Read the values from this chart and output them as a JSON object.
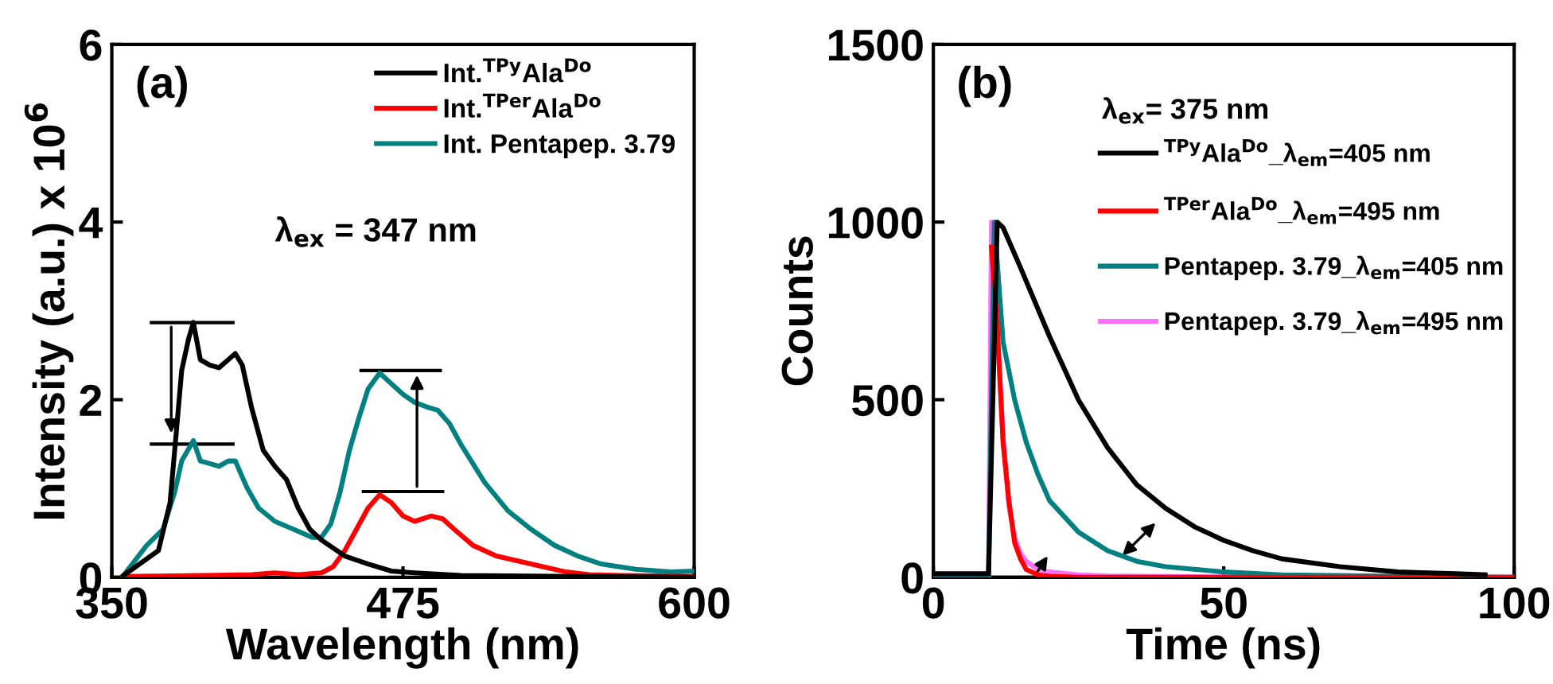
{
  "chart_data": [
    {
      "type": "line",
      "xlabel": "Wavelength (nm)",
      "ylabel": "Intensity (a.u.) x 10$^{6}$",
      "xlim": [
        350,
        600
      ],
      "xticks": [
        350,
        475,
        600
      ],
      "ylim": [
        0,
        6
      ],
      "yticks": [
        0,
        2,
        4,
        6
      ],
      "grid": false,
      "legend": "top right",
      "annotations": [
        "(a)",
        "λ$_{ex}$ = 347 nm"
      ],
      "series": [
        {
          "name": "Int.$^{TPy}$Ala$^{Do}$",
          "color": "#000000",
          "x": [
            355,
            370,
            375,
            378,
            380,
            383,
            385,
            388,
            392,
            396,
            400,
            403,
            406,
            410,
            415,
            420,
            425,
            430,
            435,
            440,
            450,
            460,
            470,
            480,
            500,
            550,
            600
          ],
          "values": [
            0.02,
            0.3,
            0.84,
            1.73,
            2.33,
            2.69,
            2.87,
            2.45,
            2.39,
            2.36,
            2.45,
            2.52,
            2.39,
            1.91,
            1.43,
            1.25,
            1.1,
            0.78,
            0.54,
            0.42,
            0.24,
            0.15,
            0.07,
            0.05,
            0.02,
            0.01,
            0
          ]
        },
        {
          "name": "Int.$^{TPer}$Ala$^{Do}$",
          "color": "#ff0000",
          "x": [
            355,
            390,
            410,
            420,
            430,
            440,
            445,
            450,
            455,
            460,
            465,
            470,
            475,
            480,
            487,
            492,
            497,
            505,
            515,
            525,
            535,
            545,
            555,
            570,
            600
          ],
          "values": [
            0.01,
            0.02,
            0.03,
            0.05,
            0.03,
            0.05,
            0.12,
            0.3,
            0.54,
            0.78,
            0.93,
            0.84,
            0.69,
            0.63,
            0.69,
            0.66,
            0.54,
            0.36,
            0.24,
            0.18,
            0.12,
            0.06,
            0.03,
            0.02,
            0.01
          ]
        },
        {
          "name": "Int. Pentapep. 3.79",
          "color": "#008080",
          "x": [
            355,
            365,
            372,
            377,
            380,
            385,
            388,
            392,
            396,
            400,
            403,
            408,
            413,
            420,
            428,
            436,
            440,
            444,
            448,
            452,
            456,
            460,
            465,
            470,
            475,
            480,
            485,
            490,
            495,
            500,
            510,
            520,
            530,
            540,
            550,
            560,
            575,
            590,
            600
          ],
          "values": [
            0.02,
            0.36,
            0.54,
            0.96,
            1.31,
            1.54,
            1.31,
            1.28,
            1.25,
            1.31,
            1.31,
            1.01,
            0.78,
            0.63,
            0.54,
            0.45,
            0.45,
            0.6,
            0.96,
            1.43,
            1.79,
            2.12,
            2.3,
            2.18,
            2.06,
            1.97,
            1.92,
            1.88,
            1.73,
            1.49,
            1.07,
            0.75,
            0.54,
            0.36,
            0.24,
            0.15,
            0.09,
            0.06,
            0.07
          ]
        }
      ]
    },
    {
      "type": "line",
      "xlabel": "Time (ns)",
      "ylabel": "Counts",
      "xlim": [
        0,
        100
      ],
      "xticks": [
        0,
        50,
        100
      ],
      "ylim": [
        0,
        1500
      ],
      "yticks": [
        0,
        500,
        1000,
        1500
      ],
      "grid": false,
      "legend": "top right",
      "annotations": [
        "(b)",
        "λ$_{ex}$= 375 nm"
      ],
      "series": [
        {
          "name": "$^{TPy}$Ala$^{Do}$_λ$_{em}$=405 nm",
          "color": "#000000",
          "x": [
            0,
            9.5,
            11,
            12,
            15,
            20,
            25,
            30,
            35,
            40,
            45,
            50,
            55,
            60,
            70,
            80,
            90,
            95
          ],
          "values": [
            10,
            10,
            1000,
            985,
            872,
            678,
            499,
            365,
            261,
            194,
            142,
            104,
            75,
            52,
            30,
            15,
            10,
            7
          ]
        },
        {
          "name": "$^{TPer}$Ala$^{Do}$_λ$_{em}$=495 nm",
          "color": "#ff0000",
          "x": [
            10,
            11,
            12,
            13,
            14,
            15,
            16,
            18,
            20,
            25,
            100
          ],
          "values": [
            930,
            708,
            380,
            216,
            97,
            52,
            22,
            7,
            3,
            0,
            0
          ]
        },
        {
          "name": "Pentapep. 3.79_λ$_{em}$=405 nm",
          "color": "#008080",
          "x": [
            0,
            9.5,
            10.5,
            12,
            14,
            16,
            18,
            20,
            25,
            30,
            35,
            40,
            50,
            60,
            80,
            100
          ],
          "values": [
            0,
            0,
            1000,
            663,
            499,
            380,
            290,
            216,
            127,
            75,
            45,
            30,
            15,
            7,
            3,
            0
          ]
        },
        {
          "name": "Pentapep. 3.79_λ$_{em}$=495 nm",
          "color": "#ff70ff",
          "x": [
            0,
            9.5,
            10,
            12,
            13,
            14,
            15,
            16,
            18,
            20,
            25,
            30,
            50,
            100
          ],
          "values": [
            0,
            0,
            1000,
            395,
            201,
            112,
            67,
            45,
            22,
            15,
            7,
            4,
            1,
            0
          ]
        }
      ]
    }
  ]
}
